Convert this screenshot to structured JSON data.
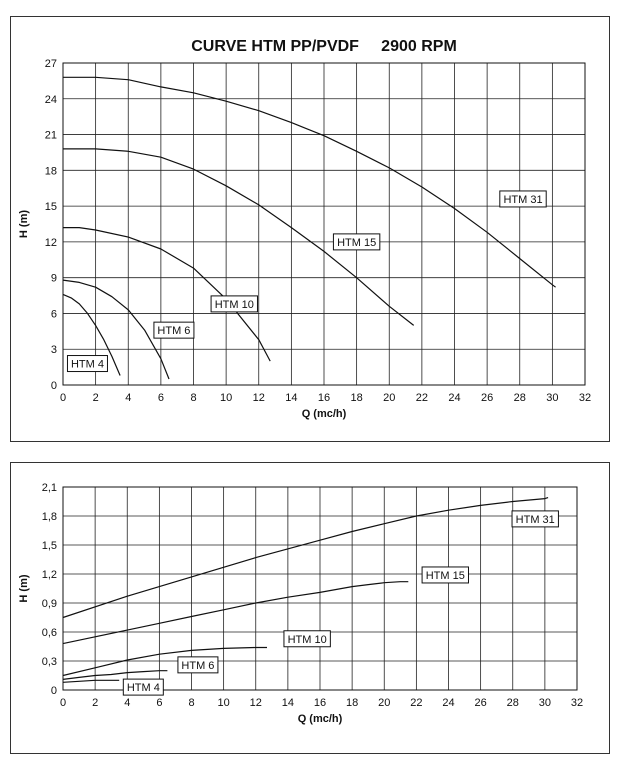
{
  "chart_data": [
    {
      "type": "line",
      "title": "CURVE HTM PP/PVDF     2900 RPM",
      "xlabel": "Q (mc/h)",
      "ylabel": "H (m)",
      "xlim": [
        0,
        32
      ],
      "ylim": [
        0,
        27
      ],
      "x_ticks": [
        0,
        2,
        4,
        6,
        8,
        10,
        12,
        14,
        16,
        18,
        20,
        22,
        24,
        26,
        28,
        30,
        32
      ],
      "x_tick_labels": [
        "0",
        "2",
        "4",
        "6",
        "8",
        "10",
        "12",
        "14",
        "16",
        "18",
        "20",
        "22",
        "24",
        "26",
        "28",
        "30",
        "32"
      ],
      "y_ticks": [
        0,
        3,
        6,
        9,
        12,
        15,
        18,
        21,
        24,
        27
      ],
      "y_tick_labels": [
        "0",
        "3",
        "6",
        "9",
        "12",
        "15",
        "18",
        "21",
        "24",
        "27"
      ],
      "grid": true,
      "series": [
        {
          "name": "HTM 31",
          "x": [
            0,
            2,
            4,
            6,
            8,
            10,
            12,
            14,
            16,
            18,
            20,
            22,
            24,
            26,
            28,
            30,
            30.2
          ],
          "y": [
            25.8,
            25.8,
            25.6,
            25.0,
            24.5,
            23.8,
            23.0,
            22.0,
            20.9,
            19.6,
            18.2,
            16.6,
            14.8,
            12.8,
            10.6,
            8.4,
            8.2
          ],
          "label_at": [
            28.2,
            15.6
          ]
        },
        {
          "name": "HTM 15",
          "x": [
            0,
            2,
            4,
            6,
            8,
            10,
            12,
            14,
            16,
            18,
            20,
            21.5
          ],
          "y": [
            19.8,
            19.8,
            19.6,
            19.1,
            18.1,
            16.7,
            15.1,
            13.2,
            11.2,
            9.0,
            6.6,
            5.0
          ],
          "label_at": [
            18.0,
            12.0
          ]
        },
        {
          "name": "HTM 10",
          "x": [
            0,
            1,
            2,
            4,
            6,
            8,
            10,
            12,
            12.7
          ],
          "y": [
            13.2,
            13.2,
            13.0,
            12.4,
            11.4,
            9.8,
            7.2,
            3.8,
            2.0
          ],
          "label_at": [
            10.5,
            6.8
          ]
        },
        {
          "name": "HTM 6",
          "x": [
            0,
            1,
            2,
            3,
            4,
            5,
            6,
            6.5
          ],
          "y": [
            8.8,
            8.6,
            8.2,
            7.4,
            6.3,
            4.6,
            2.2,
            0.5
          ],
          "label_at": [
            6.8,
            4.6
          ]
        },
        {
          "name": "HTM 4",
          "x": [
            0,
            0.5,
            1,
            1.5,
            2,
            2.5,
            3,
            3.5
          ],
          "y": [
            7.6,
            7.3,
            6.8,
            6.0,
            5.0,
            3.8,
            2.4,
            0.8
          ],
          "label_at": [
            1.5,
            1.8
          ]
        }
      ]
    },
    {
      "type": "line",
      "title": "",
      "xlabel": "Q (mc/h)",
      "ylabel": "H (m)",
      "xlim": [
        0,
        32
      ],
      "ylim": [
        0,
        2.1
      ],
      "x_ticks": [
        0,
        2,
        4,
        6,
        8,
        10,
        12,
        14,
        16,
        18,
        20,
        22,
        24,
        26,
        28,
        30,
        32
      ],
      "x_tick_labels": [
        "0",
        "2",
        "4",
        "6",
        "8",
        "10",
        "12",
        "14",
        "16",
        "18",
        "20",
        "22",
        "24",
        "26",
        "28",
        "30",
        "32"
      ],
      "y_ticks": [
        0,
        0.3,
        0.6,
        0.9,
        1.2,
        1.5,
        1.8,
        2.1
      ],
      "y_tick_labels": [
        "0",
        "0,3",
        "0,6",
        "0,9",
        "1,2",
        "1,5",
        "1,8",
        "2,1"
      ],
      "grid": true,
      "series": [
        {
          "name": "HTM 31",
          "x": [
            0,
            4,
            8,
            12,
            16,
            18,
            20,
            22,
            24,
            26,
            28,
            30,
            30.2
          ],
          "y": [
            0.75,
            0.97,
            1.17,
            1.37,
            1.55,
            1.64,
            1.72,
            1.8,
            1.86,
            1.91,
            1.95,
            1.98,
            1.99
          ],
          "label_at": [
            29.4,
            1.77
          ]
        },
        {
          "name": "HTM 15",
          "x": [
            0,
            2,
            4,
            6,
            8,
            10,
            12,
            14,
            16,
            18,
            19,
            20,
            21,
            21.5
          ],
          "y": [
            0.48,
            0.55,
            0.62,
            0.69,
            0.76,
            0.83,
            0.9,
            0.96,
            1.01,
            1.07,
            1.09,
            1.11,
            1.12,
            1.12
          ],
          "label_at": [
            23.8,
            1.19
          ]
        },
        {
          "name": "HTM 10",
          "x": [
            0,
            2,
            4,
            6,
            8,
            10,
            12,
            12.7
          ],
          "y": [
            0.15,
            0.23,
            0.31,
            0.37,
            0.41,
            0.43,
            0.44,
            0.44
          ],
          "label_at": [
            15.2,
            0.53
          ]
        },
        {
          "name": "HTM 6",
          "x": [
            0,
            1,
            2,
            3,
            4,
            5,
            6,
            6.5
          ],
          "y": [
            0.11,
            0.13,
            0.15,
            0.16,
            0.18,
            0.19,
            0.2,
            0.2
          ],
          "label_at": [
            8.4,
            0.26
          ]
        },
        {
          "name": "HTM 4",
          "x": [
            0,
            1,
            2,
            3,
            3.5
          ],
          "y": [
            0.08,
            0.09,
            0.1,
            0.1,
            0.1
          ],
          "label_at": [
            5.0,
            0.03
          ]
        }
      ]
    }
  ]
}
